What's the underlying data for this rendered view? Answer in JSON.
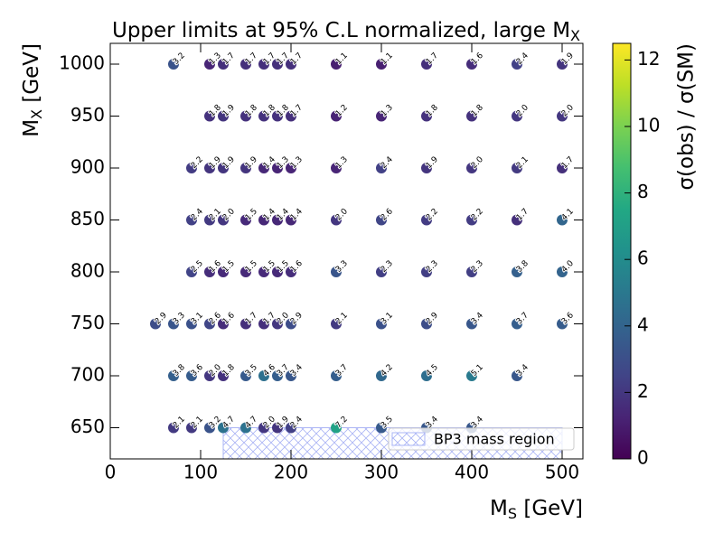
{
  "chart_data": {
    "type": "scatter",
    "title": {
      "text": "Upper limits at 95% C.L normalized, large M",
      "sub": "X"
    },
    "xlabel": {
      "text": "M",
      "sub": "S",
      "after": " [GeV]"
    },
    "ylabel": {
      "text": "M",
      "sub": "X",
      "after": " [GeV]"
    },
    "colorbar_label": "σ(obs) / σ(SM)",
    "colormap": "viridis",
    "clim": [
      0,
      12.5
    ],
    "cticks": [
      0,
      2,
      4,
      6,
      8,
      10,
      12
    ],
    "xlim": [
      0,
      523
    ],
    "ylim": [
      620,
      1020
    ],
    "xticks": [
      0,
      100,
      200,
      300,
      400,
      500
    ],
    "yticks": [
      650,
      700,
      750,
      800,
      850,
      900,
      950,
      1000
    ],
    "legend_loc": "lower right",
    "region": {
      "name": "BP3 mass region",
      "color": "#aab4f5",
      "x": [
        125,
        500
      ],
      "y": [
        620,
        650
      ]
    },
    "series": [
      {
        "x": [
          70,
          110,
          125,
          150,
          170,
          185,
          200,
          250,
          300,
          350,
          400,
          450,
          500,
          110,
          125,
          150,
          170,
          185,
          200,
          250,
          300,
          350,
          400,
          450,
          500,
          90,
          110,
          125,
          150,
          170,
          185,
          200,
          250,
          300,
          350,
          400,
          450,
          500,
          90,
          110,
          125,
          150,
          170,
          185,
          200,
          250,
          300,
          350,
          400,
          450,
          500,
          90,
          110,
          125,
          150,
          170,
          185,
          200,
          250,
          300,
          350,
          400,
          450,
          500,
          50,
          70,
          90,
          110,
          125,
          150,
          170,
          185,
          200,
          250,
          300,
          350,
          400,
          450,
          500,
          70,
          90,
          110,
          125,
          150,
          170,
          185,
          200,
          250,
          300,
          350,
          400,
          450,
          70,
          90,
          110,
          125,
          150,
          170,
          185,
          200,
          250,
          300,
          350,
          400
        ],
        "y": [
          1000,
          1000,
          1000,
          1000,
          1000,
          1000,
          1000,
          1000,
          1000,
          1000,
          1000,
          1000,
          1000,
          950,
          950,
          950,
          950,
          950,
          950,
          950,
          950,
          950,
          950,
          950,
          950,
          900,
          900,
          900,
          900,
          900,
          900,
          900,
          900,
          900,
          900,
          900,
          900,
          900,
          850,
          850,
          850,
          850,
          850,
          850,
          850,
          850,
          850,
          850,
          850,
          850,
          850,
          800,
          800,
          800,
          800,
          800,
          800,
          800,
          800,
          800,
          800,
          800,
          800,
          800,
          750,
          750,
          750,
          750,
          750,
          750,
          750,
          750,
          750,
          750,
          750,
          750,
          750,
          750,
          750,
          700,
          700,
          700,
          700,
          700,
          700,
          700,
          700,
          700,
          700,
          700,
          700,
          700,
          650,
          650,
          650,
          650,
          650,
          650,
          650,
          650,
          650,
          650,
          650,
          650
        ],
        "values": [
          3.2,
          1.3,
          1.7,
          1.7,
          1.7,
          1.7,
          1.7,
          1.1,
          1.1,
          1.7,
          1.6,
          2.4,
          1.9,
          1.8,
          1.9,
          1.8,
          1.8,
          1.8,
          1.7,
          1.2,
          1.3,
          1.8,
          1.8,
          2.0,
          2.0,
          2.2,
          1.9,
          1.9,
          1.9,
          1.4,
          1.3,
          1.3,
          1.3,
          2.4,
          1.9,
          2.0,
          2.1,
          1.7,
          2.4,
          2.1,
          2.0,
          1.5,
          1.4,
          1.4,
          1.4,
          2.0,
          2.6,
          2.2,
          2.2,
          1.7,
          4.1,
          2.5,
          1.6,
          1.5,
          1.5,
          1.5,
          1.5,
          1.6,
          3.3,
          2.3,
          2.3,
          2.3,
          3.8,
          4.0,
          2.9,
          3.3,
          3.1,
          2.6,
          1.6,
          1.7,
          1.7,
          2.0,
          2.9,
          2.1,
          3.1,
          2.9,
          3.4,
          3.7,
          3.6,
          3.8,
          3.6,
          2.0,
          1.8,
          3.5,
          4.6,
          3.7,
          3.4,
          3.7,
          4.2,
          4.5,
          5.1,
          3.4,
          2.1,
          2.1,
          3.2,
          4.7,
          4.7,
          2.0,
          1.9,
          2.4,
          7.2,
          3.5,
          3.4,
          3.4
        ],
        "value_labels": [
          "3.2",
          "1.3",
          "1.7",
          "1.7",
          "1.7",
          "1.7",
          "1.7",
          "1.1",
          "1.1",
          "1.7",
          "1.6",
          "2.4",
          "1.9",
          "1.8",
          "1.9",
          "1.8",
          "1.8",
          "1.8",
          "1.7",
          "1.2",
          "1.3",
          "1.8",
          "1.8",
          "2.0",
          "2.0",
          "2.2",
          "1.9",
          "1.9",
          "1.9",
          "1.4",
          "1.3",
          "1.3",
          "1.3",
          "2.4",
          "1.9",
          "2.0",
          "2.1",
          "1.7",
          "2.4",
          "2.1",
          "2.0",
          "1.5",
          "1.4",
          "1.4",
          "1.4",
          "2.0",
          "2.6",
          "2.2",
          "2.2",
          "1.7",
          "4.1",
          "2.5",
          "1.6",
          "1.5",
          "1.5",
          "1.5",
          "1.5",
          "1.6",
          "3.3",
          "2.3",
          "2.3",
          "2.3",
          "3.8",
          "4.0",
          "2.9",
          "3.3",
          "3.1",
          "2.6",
          "1.6",
          "1.7",
          "1.7",
          "2.0",
          "2.9",
          "2.1",
          "3.1",
          "2.9",
          "3.4",
          "3.7",
          "3.6",
          "3.8",
          "3.6",
          "2.0",
          "1.8",
          "3.5",
          "4.6",
          "3.7",
          "3.4",
          "3.7",
          "4.2",
          "4.5",
          "5.1",
          "3.4",
          "2.1",
          "2.1",
          "3.2",
          "4.7",
          "4.7",
          "2.0",
          "1.9",
          "2.4",
          "7.2",
          "3.5",
          "3.4",
          "3.4"
        ]
      }
    ]
  }
}
